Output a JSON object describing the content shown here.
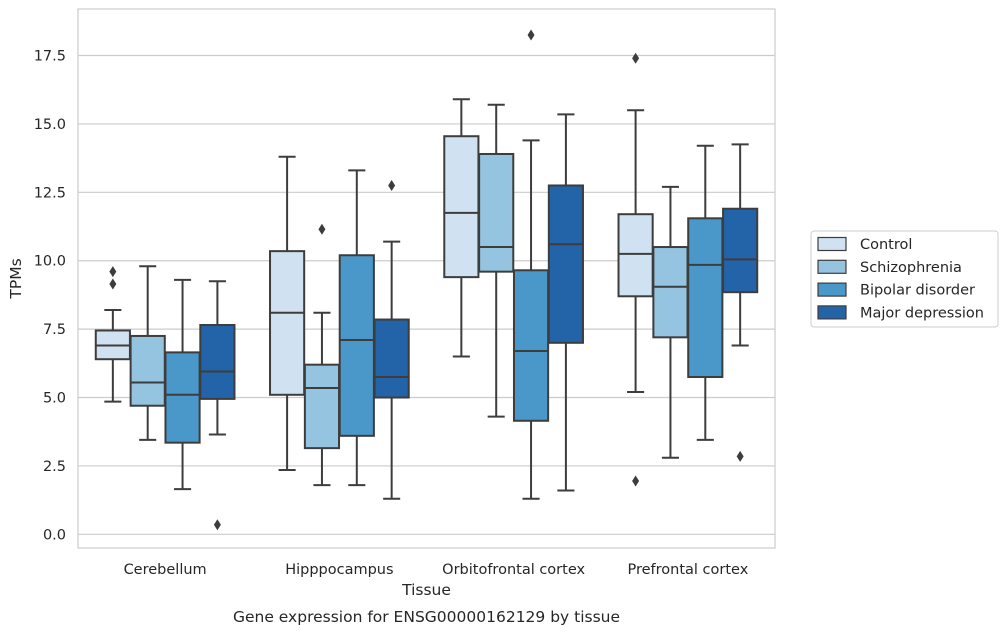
{
  "chart_data": {
    "type": "boxplot",
    "title": "",
    "caption": "Gene expression for ENSG00000162129 by tissue",
    "xlabel": "Tissue",
    "ylabel": "TPMs",
    "ylim": [
      -0.5,
      19.2
    ],
    "yticks": [
      0.0,
      2.5,
      5.0,
      7.5,
      10.0,
      12.5,
      15.0,
      17.5
    ],
    "ytick_labels": [
      "0.0",
      "2.5",
      "5.0",
      "7.5",
      "10.0",
      "12.5",
      "15.0",
      "17.5"
    ],
    "grid": "horizontal",
    "legend_position": "right",
    "categories": [
      "Cerebellum",
      "Hipppocampus",
      "Orbitofrontal cortex",
      "Prefrontal cortex"
    ],
    "series": [
      {
        "name": "Control",
        "color": "#d0e1f2",
        "boxes": [
          {
            "whislo": 4.85,
            "q1": 6.4,
            "med": 6.9,
            "q3": 7.45,
            "whishi": 8.2,
            "fliers": [
              9.15,
              9.6
            ]
          },
          {
            "whislo": 2.35,
            "q1": 5.1,
            "med": 8.1,
            "q3": 10.35,
            "whishi": 13.8,
            "fliers": []
          },
          {
            "whislo": 6.5,
            "q1": 9.4,
            "med": 11.75,
            "q3": 14.55,
            "whishi": 15.9,
            "fliers": []
          },
          {
            "whislo": 5.2,
            "q1": 8.7,
            "med": 10.25,
            "q3": 11.7,
            "whishi": 15.5,
            "fliers": [
              1.95,
              17.4
            ]
          }
        ]
      },
      {
        "name": "Schizophrenia",
        "color": "#94c4df",
        "boxes": [
          {
            "whislo": 3.45,
            "q1": 4.7,
            "med": 5.55,
            "q3": 7.25,
            "whishi": 9.8,
            "fliers": []
          },
          {
            "whislo": 1.8,
            "q1": 3.15,
            "med": 5.35,
            "q3": 6.2,
            "whishi": 8.1,
            "fliers": [
              11.15
            ]
          },
          {
            "whislo": 4.3,
            "q1": 9.6,
            "med": 10.5,
            "q3": 13.9,
            "whishi": 15.7,
            "fliers": []
          },
          {
            "whislo": 2.8,
            "q1": 7.2,
            "med": 9.05,
            "q3": 10.5,
            "whishi": 12.7,
            "fliers": []
          }
        ]
      },
      {
        "name": "Bipolar disorder",
        "color": "#4a98c9",
        "boxes": [
          {
            "whislo": 1.65,
            "q1": 3.35,
            "med": 5.1,
            "q3": 6.65,
            "whishi": 9.3,
            "fliers": []
          },
          {
            "whislo": 1.8,
            "q1": 3.6,
            "med": 7.1,
            "q3": 10.2,
            "whishi": 13.3,
            "fliers": []
          },
          {
            "whislo": 1.3,
            "q1": 4.15,
            "med": 6.7,
            "q3": 9.65,
            "whishi": 14.4,
            "fliers": [
              18.25
            ]
          },
          {
            "whislo": 3.45,
            "q1": 5.75,
            "med": 9.85,
            "q3": 11.55,
            "whishi": 14.2,
            "fliers": []
          }
        ]
      },
      {
        "name": "Major depression",
        "color": "#2363a8",
        "boxes": [
          {
            "whislo": 3.65,
            "q1": 4.95,
            "med": 5.95,
            "q3": 7.65,
            "whishi": 9.25,
            "fliers": [
              0.35
            ]
          },
          {
            "whislo": 1.3,
            "q1": 5.0,
            "med": 5.75,
            "q3": 7.85,
            "whishi": 10.7,
            "fliers": [
              12.75
            ]
          },
          {
            "whislo": 1.6,
            "q1": 7.0,
            "med": 10.6,
            "q3": 12.75,
            "whishi": 15.35,
            "fliers": []
          },
          {
            "whislo": 6.9,
            "q1": 8.85,
            "med": 10.05,
            "q3": 11.9,
            "whishi": 14.25,
            "fliers": [
              2.85
            ]
          }
        ]
      }
    ]
  }
}
